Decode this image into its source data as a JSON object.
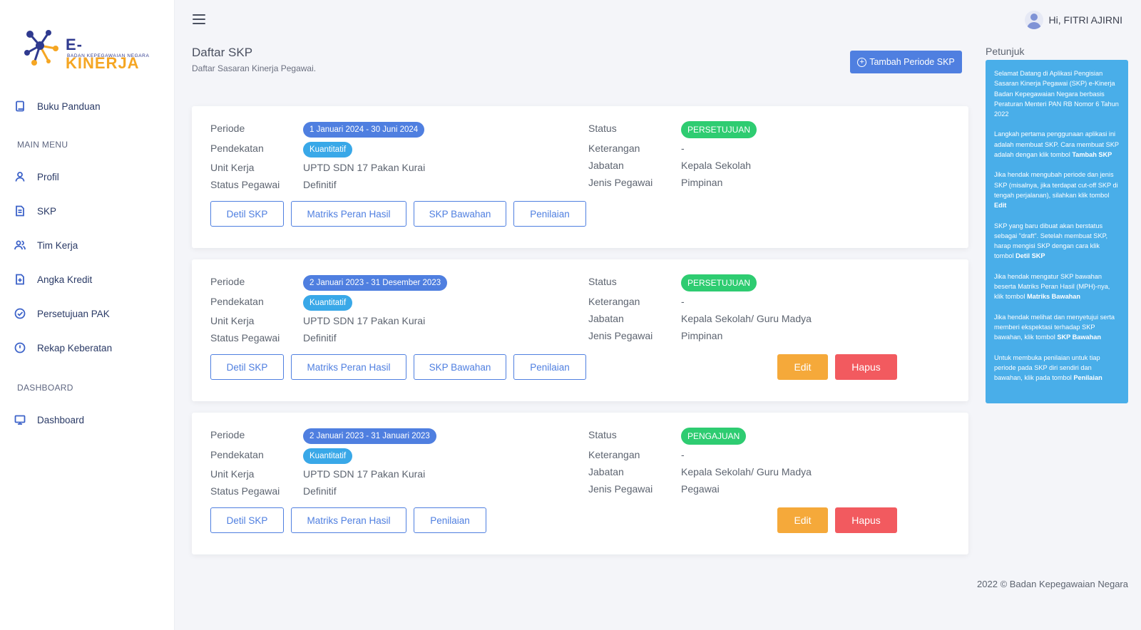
{
  "app": {
    "logo_text_e": "E-",
    "logo_text_kinerja": "KINERJA",
    "logo_subtitle": "BADAN KEPEGAWAIAN NEGARA"
  },
  "sidebar": {
    "guide": "Buku Panduan",
    "main_menu_label": "MAIN MENU",
    "main_menu": [
      {
        "label": "Profil",
        "icon": "user-icon"
      },
      {
        "label": "SKP",
        "icon": "document-icon"
      },
      {
        "label": "Tim Kerja",
        "icon": "users-icon"
      },
      {
        "label": "Angka Kredit",
        "icon": "file-plus-icon"
      },
      {
        "label": "Persetujuan PAK",
        "icon": "check-circle-icon"
      },
      {
        "label": "Rekap Keberatan",
        "icon": "alert-circle-icon"
      }
    ],
    "dashboard_label": "DASHBOARD",
    "dashboard": "Dashboard"
  },
  "header": {
    "user_greeting": "Hi, FITRI AJIRNI"
  },
  "page": {
    "title": "Daftar SKP",
    "subtitle": "Daftar Sasaran Kinerja Pegawai.",
    "add_button": "Tambah Periode SKP"
  },
  "labels": {
    "periode": "Periode",
    "pendekatan": "Pendekatan",
    "unit_kerja": "Unit Kerja",
    "status_pegawai": "Status Pegawai",
    "status": "Status",
    "keterangan": "Keterangan",
    "jabatan": "Jabatan",
    "jenis_pegawai": "Jenis Pegawai"
  },
  "cards": [
    {
      "periode": "1 Januari 2024 - 30 Juni 2024",
      "pendekatan": "Kuantitatif",
      "unit_kerja": "UPTD SDN 17 Pakan Kurai",
      "status_pegawai": "Definitif",
      "status": "PERSETUJUAN",
      "keterangan": "-",
      "jabatan": "Kepala Sekolah",
      "jenis_pegawai": "Pimpinan",
      "buttons": [
        "Detil SKP",
        "Matriks Peran Hasil",
        "SKP Bawahan",
        "Penilaian"
      ]
    },
    {
      "periode": "2 Januari 2023 - 31 Desember 2023",
      "pendekatan": "Kuantitatif",
      "unit_kerja": "UPTD SDN 17 Pakan Kurai",
      "status_pegawai": "Definitif",
      "status": "PERSETUJUAN",
      "keterangan": "-",
      "jabatan": "Kepala Sekolah/ Guru Madya",
      "jenis_pegawai": "Pimpinan",
      "buttons": [
        "Detil SKP",
        "Matriks Peran Hasil",
        "SKP Bawahan",
        "Penilaian"
      ],
      "edit": "Edit",
      "delete": "Hapus"
    },
    {
      "periode": "2 Januari 2023 - 31 Januari 2023",
      "pendekatan": "Kuantitatif",
      "unit_kerja": "UPTD SDN 17 Pakan Kurai",
      "status_pegawai": "Definitif",
      "status": "PENGAJUAN",
      "keterangan": "-",
      "jabatan": "Kepala Sekolah/ Guru Madya",
      "jenis_pegawai": "Pegawai",
      "buttons": [
        "Detil SKP",
        "Matriks Peran Hasil",
        "Penilaian"
      ],
      "edit": "Edit",
      "delete": "Hapus"
    }
  ],
  "petunjuk": {
    "title": "Petunjuk",
    "p1": "Selamat Datang di Aplikasi Pengisian Sasaran Kinerja Pegawai (SKP) e-Kinerja Badan Kepegawaian Negara berbasis Peraturan Menteri PAN RB Nomor 6 Tahun 2022",
    "p2_a": "Langkah pertama penggunaan aplikasi ini adalah membuat SKP. Cara membuat SKP adalah dengan klik tombol ",
    "p2_b": "Tambah SKP",
    "p3_a": "Jika hendak mengubah periode dan jenis SKP (misalnya, jika terdapat cut-off SKP di tengah perjalanan), silahkan klik tombol ",
    "p3_b": "Edit",
    "p4_a": "SKP yang baru dibuat akan berstatus sebagai \"draft\". Setelah membuat SKP, harap mengisi SKP dengan cara klik tombol ",
    "p4_b": "Detil SKP",
    "p5_a": "Jika hendak mengatur SKP bawahan beserta Matriks Peran Hasil (MPH)-nya, klik tombol ",
    "p5_b": "Matriks Bawahan",
    "p6_a": "Jika hendak melihat dan menyetujui serta memberi ekspektasi terhadap SKP bawahan, klik tombol ",
    "p6_b": "SKP Bawahan",
    "p7_a": "Untuk membuka penilaian untuk tiap periode pada SKP diri sendiri dan bawahan, klik pada tombol ",
    "p7_b": "Penilaian"
  },
  "footer": "2022 © Badan Kepegawaian Negara",
  "colors": {
    "primary": "#4f7fe0",
    "info": "#49aee9",
    "success": "#2ecc71",
    "warning": "#f5a93a",
    "danger": "#f25a5f"
  }
}
